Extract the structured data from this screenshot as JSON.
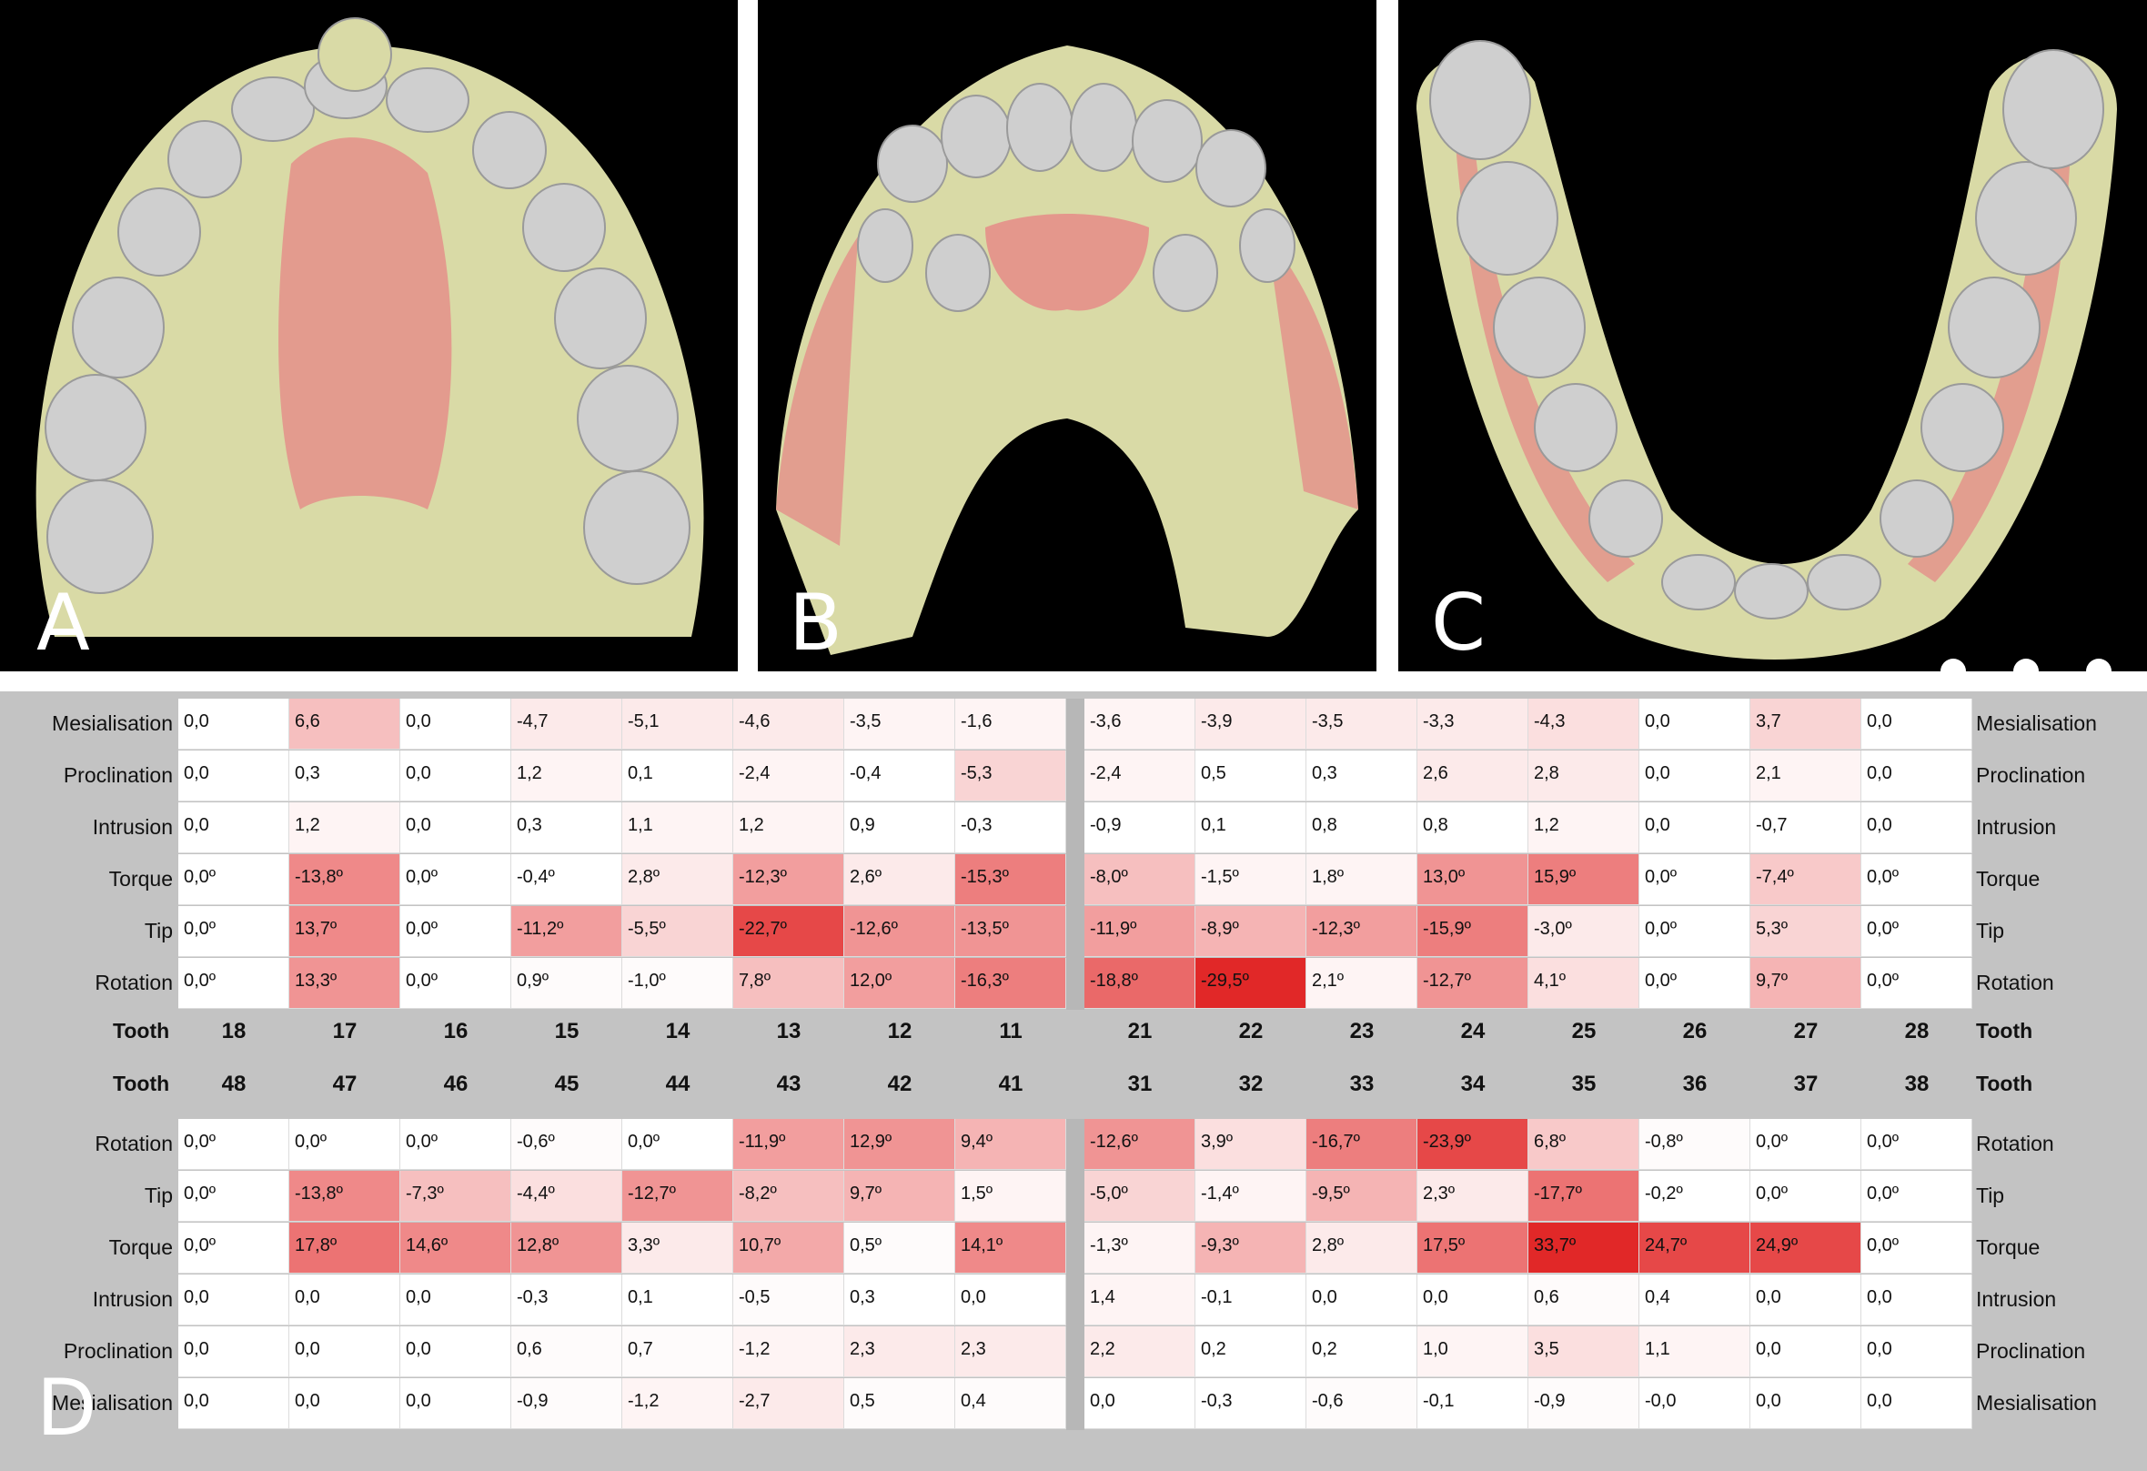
{
  "panels": [
    {
      "letter": "A"
    },
    {
      "letter": "B"
    },
    {
      "letter": "C"
    },
    {
      "letter": "D"
    }
  ],
  "colors": {
    "gum": "#d9daa6",
    "tooth": "#cfcfcf",
    "overlay": "#e48f8a",
    "table_bg": "#c3c3c3"
  },
  "upper": {
    "teeth": [
      "18",
      "17",
      "16",
      "15",
      "14",
      "13",
      "12",
      "11",
      "21",
      "22",
      "23",
      "24",
      "25",
      "26",
      "27",
      "28"
    ],
    "tooth_label": "Tooth",
    "rows": [
      {
        "label": "Mesialisation",
        "values": [
          "0,0",
          "6,6",
          "0,0",
          "-4,7",
          "-5,1",
          "-4,6",
          "-3,5",
          "-1,6",
          "-3,6",
          "-3,9",
          "-3,5",
          "-3,3",
          "-4,3",
          "0,0",
          "3,7",
          "0,0"
        ],
        "intensity": [
          0,
          0.3,
          0,
          0.1,
          0.1,
          0.1,
          0.05,
          0.05,
          0.05,
          0.1,
          0.1,
          0.1,
          0.15,
          0,
          0.2,
          0
        ]
      },
      {
        "label": "Proclination",
        "values": [
          "0,0",
          "0,3",
          "0,0",
          "1,2",
          "0,1",
          "-2,4",
          "-0,4",
          "-5,3",
          "-2,4",
          "0,5",
          "0,3",
          "2,6",
          "2,8",
          "0,0",
          "2,1",
          "0,0"
        ],
        "intensity": [
          0,
          0,
          0,
          0.05,
          0,
          0.05,
          0,
          0.2,
          0.05,
          0,
          0,
          0.1,
          0.1,
          0,
          0.05,
          0
        ]
      },
      {
        "label": "Intrusion",
        "values": [
          "0,0",
          "1,2",
          "0,0",
          "0,3",
          "1,1",
          "1,2",
          "0,9",
          "-0,3",
          "-0,9",
          "0,1",
          "0,8",
          "0,8",
          "1,2",
          "0,0",
          "-0,7",
          "0,0"
        ],
        "intensity": [
          0,
          0.05,
          0,
          0,
          0.05,
          0.05,
          0,
          0,
          0,
          0,
          0,
          0,
          0.05,
          0,
          0,
          0
        ]
      },
      {
        "label": "Torque",
        "values": [
          "0,0º",
          "-13,8º",
          "0,0º",
          "-0,4º",
          "2,8º",
          "-12,3º",
          "2,6º",
          "-15,3º",
          "-8,0º",
          "-1,5º",
          "1,8º",
          "13,0º",
          "15,9º",
          "0,0º",
          "-7,4º",
          "0,0º"
        ],
        "intensity": [
          0,
          0.55,
          0,
          0,
          0.1,
          0.45,
          0.1,
          0.6,
          0.3,
          0.05,
          0.05,
          0.5,
          0.6,
          0,
          0.25,
          0
        ]
      },
      {
        "label": "Tip",
        "values": [
          "0,0º",
          "13,7º",
          "0,0º",
          "-11,2º",
          "-5,5º",
          "-22,7º",
          "-12,6º",
          "-13,5º",
          "-11,9º",
          "-8,9º",
          "-12,3º",
          "-15,9º",
          "-3,0º",
          "0,0º",
          "5,3º",
          "0,0º"
        ],
        "intensity": [
          0,
          0.55,
          0,
          0.45,
          0.2,
          0.85,
          0.5,
          0.5,
          0.45,
          0.35,
          0.45,
          0.6,
          0.1,
          0,
          0.2,
          0
        ]
      },
      {
        "label": "Rotation",
        "values": [
          "0,0º",
          "13,3º",
          "0,0º",
          "0,9º",
          "-1,0º",
          "7,8º",
          "12,0º",
          "-16,3º",
          "-18,8º",
          "-29,5º",
          "2,1º",
          "-12,7º",
          "4,1º",
          "0,0º",
          "9,7º",
          "0,0º"
        ],
        "intensity": [
          0,
          0.5,
          0,
          0.02,
          0.02,
          0.3,
          0.45,
          0.6,
          0.7,
          1.0,
          0.05,
          0.5,
          0.15,
          0,
          0.35,
          0
        ]
      }
    ]
  },
  "lower": {
    "teeth": [
      "48",
      "47",
      "46",
      "45",
      "44",
      "43",
      "42",
      "41",
      "31",
      "32",
      "33",
      "34",
      "35",
      "36",
      "37",
      "38"
    ],
    "tooth_label": "Tooth",
    "rows": [
      {
        "label": "Rotation",
        "values": [
          "0,0º",
          "0,0º",
          "0,0º",
          "-0,6º",
          "0,0º",
          "-11,9º",
          "12,9º",
          "9,4º",
          "-12,6º",
          "3,9º",
          "-16,7º",
          "-23,9º",
          "6,8º",
          "-0,8º",
          "0,0º",
          "0,0º"
        ],
        "intensity": [
          0,
          0,
          0,
          0.02,
          0,
          0.45,
          0.5,
          0.35,
          0.5,
          0.15,
          0.6,
          0.85,
          0.25,
          0.02,
          0,
          0
        ]
      },
      {
        "label": "Tip",
        "values": [
          "0,0º",
          "-13,8º",
          "-7,3º",
          "-4,4º",
          "-12,7º",
          "-8,2º",
          "9,7º",
          "1,5º",
          "-5,0º",
          "-1,4º",
          "-9,5º",
          "2,3º",
          "-17,7º",
          "-0,2º",
          "0,0º",
          "0,0º"
        ],
        "intensity": [
          0,
          0.55,
          0.3,
          0.15,
          0.5,
          0.3,
          0.35,
          0.05,
          0.2,
          0.05,
          0.35,
          0.1,
          0.65,
          0,
          0,
          0
        ]
      },
      {
        "label": "Torque",
        "values": [
          "0,0º",
          "17,8º",
          "14,6º",
          "12,8º",
          "3,3º",
          "10,7º",
          "0,5º",
          "14,1º",
          "-1,3º",
          "-9,3º",
          "2,8º",
          "17,5º",
          "33,7º",
          "24,7º",
          "24,9º",
          "0,0º"
        ],
        "intensity": [
          0,
          0.65,
          0.55,
          0.5,
          0.1,
          0.4,
          0.02,
          0.55,
          0.05,
          0.35,
          0.1,
          0.65,
          1.0,
          0.85,
          0.85,
          0
        ]
      },
      {
        "label": "Intrusion",
        "values": [
          "0,0",
          "0,0",
          "0,0",
          "-0,3",
          "0,1",
          "-0,5",
          "0,3",
          "0,0",
          "1,4",
          "-0,1",
          "0,0",
          "0,0",
          "0,6",
          "0,4",
          "0,0",
          "0,0"
        ],
        "intensity": [
          0,
          0,
          0,
          0,
          0,
          0.02,
          0,
          0,
          0.05,
          0,
          0,
          0,
          0.02,
          0,
          0,
          0
        ]
      },
      {
        "label": "Proclination",
        "values": [
          "0,0",
          "0,0",
          "0,0",
          "0,6",
          "0,7",
          "-1,2",
          "2,3",
          "2,3",
          "2,2",
          "0,2",
          "0,2",
          "1,0",
          "3,5",
          "1,1",
          "0,0",
          "0,0"
        ],
        "intensity": [
          0,
          0,
          0,
          0.02,
          0.02,
          0.05,
          0.1,
          0.1,
          0.1,
          0,
          0,
          0.05,
          0.15,
          0.05,
          0,
          0
        ]
      },
      {
        "label": "Mesialisation",
        "values": [
          "0,0",
          "0,0",
          "0,0",
          "-0,9",
          "-1,2",
          "-2,7",
          "0,5",
          "0,4",
          "0,0",
          "-0,3",
          "-0,6",
          "-0,1",
          "-0,9",
          "-0,0",
          "0,0",
          "0,0"
        ],
        "intensity": [
          0,
          0,
          0,
          0.02,
          0.05,
          0.1,
          0.02,
          0.02,
          0,
          0,
          0.02,
          0,
          0.02,
          0,
          0,
          0
        ]
      }
    ]
  }
}
